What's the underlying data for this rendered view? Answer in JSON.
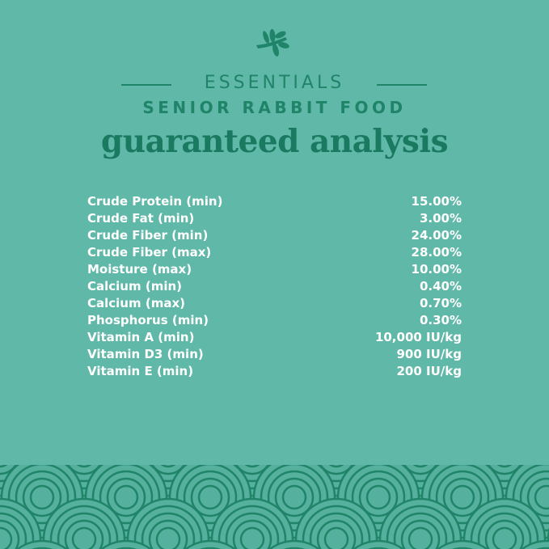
{
  "header": {
    "brand": "ESSENTIALS",
    "product": "SENIOR RABBIT FOOD",
    "title": "guaranteed analysis",
    "icon": "leaf-icon"
  },
  "colors": {
    "background": "#60b8a8",
    "accent": "#1f8468",
    "text": "#ffffff"
  },
  "analysis": [
    {
      "label": "Crude Protein (min)",
      "value": "15.00%"
    },
    {
      "label": "Crude Fat (min)",
      "value": "3.00%"
    },
    {
      "label": "Crude Fiber (min)",
      "value": "24.00%"
    },
    {
      "label": "Crude Fiber (max)",
      "value": "28.00%"
    },
    {
      "label": "Moisture (max)",
      "value": "10.00%"
    },
    {
      "label": "Calcium (min)",
      "value": "0.40%"
    },
    {
      "label": "Calcium (max)",
      "value": "0.70%"
    },
    {
      "label": "Phosphorus (min)",
      "value": "0.30%"
    },
    {
      "label": "Vitamin A (min)",
      "value": "10,000 IU/kg"
    },
    {
      "label": "Vitamin D3 (min)",
      "value": "900 IU/kg"
    },
    {
      "label": "Vitamin E (min)",
      "value": "200 IU/kg"
    }
  ]
}
